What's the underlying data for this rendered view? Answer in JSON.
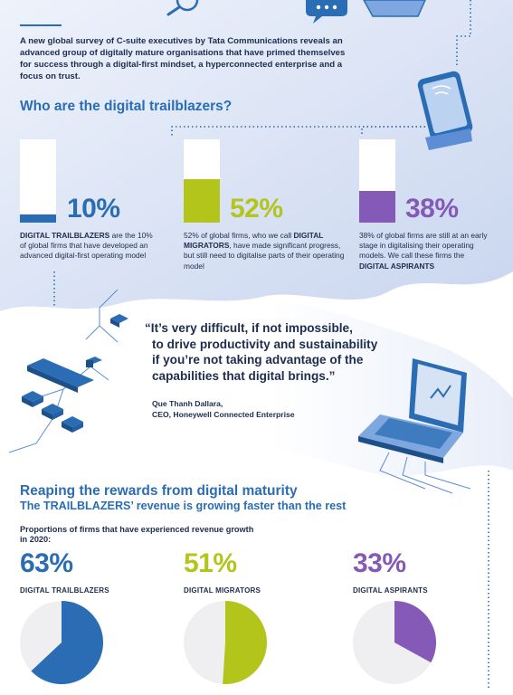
{
  "intro": "A new global survey of C-suite executives by Tata Communications reveals an advanced group of digitally mature organisations that have primed themselves for success through a digital-first mindset, a hyperconnected enterprise and a focus on trust.",
  "trailblazers_heading": "Who are the digital trailblazers?",
  "groups": [
    {
      "pct": "10%",
      "value": 10,
      "color": "#2a6db4",
      "desc_pre": "",
      "desc_bold": "DIGITAL TRAILBLAZERS",
      "desc_post": " are the 10% of global firms that have developed an advanced digital-first operating model"
    },
    {
      "pct": "52%",
      "value": 52,
      "color": "#b3c51a",
      "desc_pre": "52% of global firms, who we call ",
      "desc_bold": "DIGITAL MIGRATORS",
      "desc_post": ", have made significant progress, but still need to digitalise parts of their operating model"
    },
    {
      "pct": "38%",
      "value": 38,
      "color": "#8459b8",
      "desc_pre": "38% of global firms are still at an early stage in digitalising their operating models. We call these firms the ",
      "desc_bold": "DIGITAL ASPIRANTS",
      "desc_post": ""
    }
  ],
  "quote": {
    "line1": "“It’s very difficult, if not impossible,",
    "line2": "to drive productivity and sustainability",
    "line3": "if you’re not taking advantage of the",
    "line4": "capabilities that digital brings.”",
    "author": "Que Thanh Dallara,",
    "role": "CEO, Honeywell Connected Enterprise"
  },
  "rewards_heading": "Reaping the rewards from digital maturity",
  "rewards_sub": "The TRAILBLAZERS’ revenue is growing faster than the rest",
  "proportion_label": "Proportions of firms that have experienced revenue growth in 2020:",
  "chart_data": {
    "type": "pie",
    "title": "Proportions of firms that have experienced revenue growth in 2020:",
    "categories": [
      "DIGITAL TRAILBLAZERS",
      "DIGITAL MIGRATORS",
      "DIGITAL ASPIRANTS"
    ],
    "values": [
      63,
      51,
      33
    ],
    "labels": [
      "63%",
      "51%",
      "33%"
    ],
    "colors": [
      "#2a6db4",
      "#b3c51a",
      "#8459b8"
    ],
    "remainder_color": "#efeff1"
  }
}
